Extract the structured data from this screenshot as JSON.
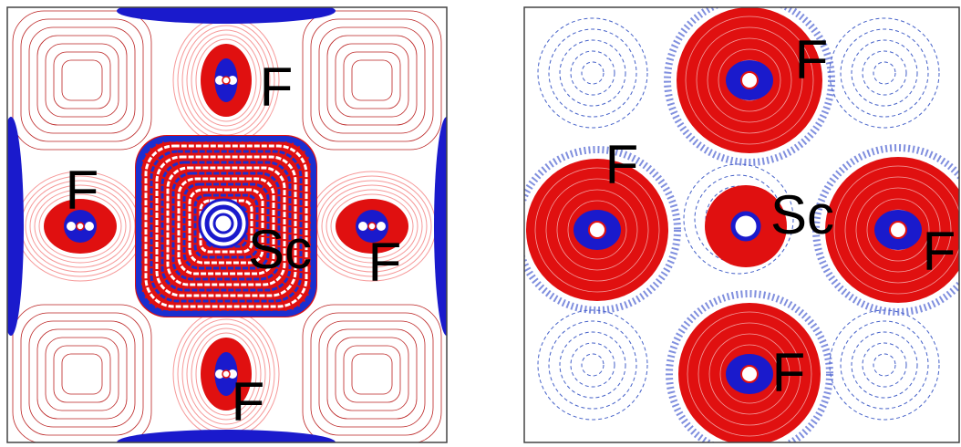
{
  "panels": [
    {
      "labels": [
        "F",
        "F",
        "Sc",
        "F",
        "F"
      ]
    },
    {
      "labels": [
        "F",
        "F",
        "Sc",
        "F",
        "F"
      ]
    }
  ]
}
